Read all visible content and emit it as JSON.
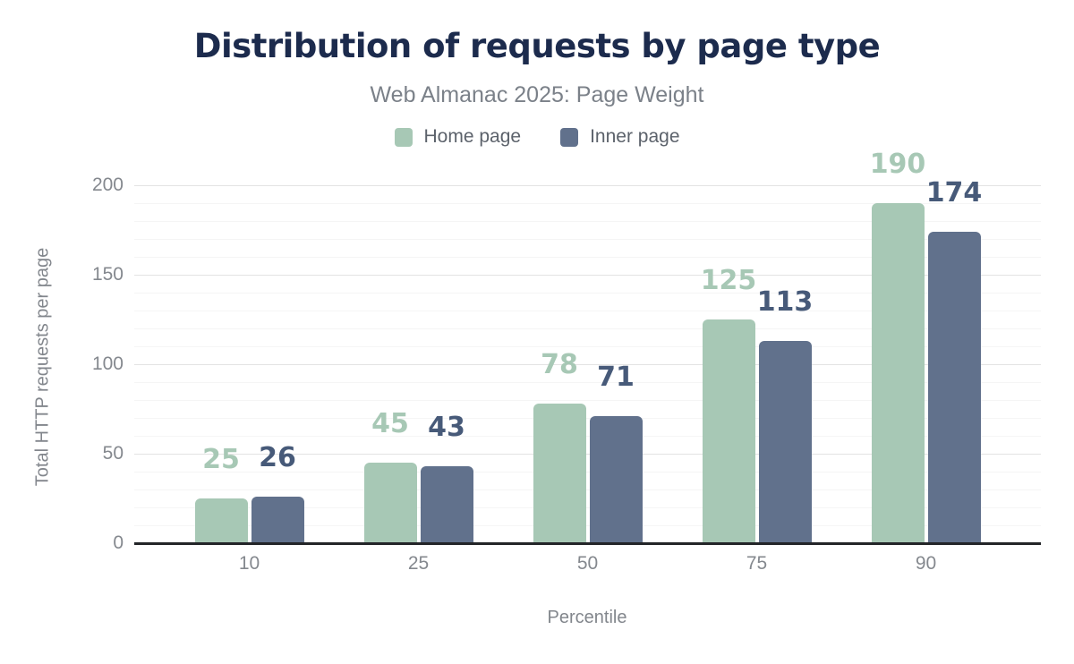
{
  "header": {
    "title": "Distribution of requests by page type",
    "subtitle": "Web Almanac 2025: Page Weight"
  },
  "chart_data": {
    "type": "bar",
    "title": "Distribution of requests by page type",
    "subtitle": "Web Almanac 2025: Page Weight",
    "categories": [
      "10",
      "25",
      "50",
      "75",
      "90"
    ],
    "series": [
      {
        "name": "Home page",
        "color": "#a7c8b5",
        "label_color": "#a7c8b5",
        "values": [
          25,
          45,
          78,
          125,
          190
        ]
      },
      {
        "name": "Inner page",
        "color": "#61718c",
        "label_color": "#475a79",
        "values": [
          26,
          43,
          71,
          113,
          174
        ]
      }
    ],
    "xlabel": "Percentile",
    "ylabel": "Total HTTP requests per page",
    "ylim": [
      0,
      200
    ],
    "yticks": [
      0,
      50,
      100,
      150,
      200
    ],
    "minor_grid_step": 10,
    "grid": true,
    "legend_position": "top"
  },
  "colors": {
    "background": "#ffffff",
    "title_text": "#1c2b4d",
    "subtitle_text": "#7b8189",
    "legend_text": "#5c626b",
    "axis_text": "#84888e",
    "axis_line": "#232528",
    "grid_major": "#e3e3e3",
    "grid_minor": "#f5f5f5"
  }
}
